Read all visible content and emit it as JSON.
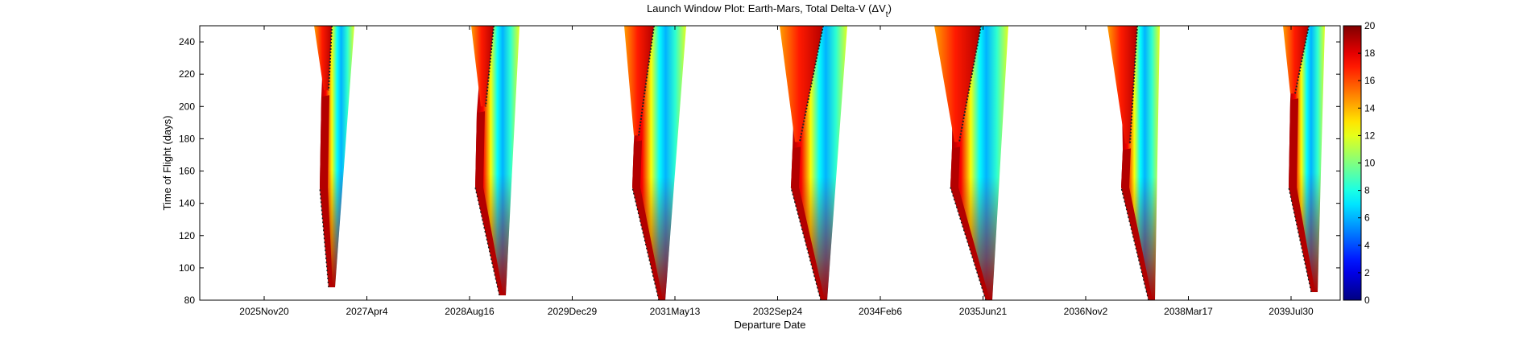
{
  "chart_data": {
    "type": "heatmap",
    "title": "Launch Window Plot: Earth-Mars, Total Delta-V (ΔV",
    "title_subscript": "t",
    "title_suffix": ")",
    "xlabel": "Departure Date",
    "ylabel": "Time of Flight (days)",
    "ylim": [
      80,
      250
    ],
    "yticks": [
      80,
      100,
      120,
      140,
      160,
      180,
      200,
      220,
      240
    ],
    "xticks": [
      "2025Nov20",
      "2027Apr4",
      "2028Aug16",
      "2029Dec29",
      "2031May13",
      "2032Sep24",
      "2034Feb6",
      "2035Jun21",
      "2036Nov2",
      "2038Mar17",
      "2039Jul30"
    ],
    "colorbar": {
      "range": [
        0,
        20
      ],
      "ticks": [
        0,
        2,
        4,
        6,
        8,
        10,
        12,
        14,
        16,
        18,
        20
      ],
      "colormap": "jet"
    },
    "grid": false,
    "launch_windows": [
      {
        "window": "2026-2027",
        "min_tof": 88,
        "min_tof_date_fraction": 0.77
      },
      {
        "window": "2028-2029",
        "min_tof": 83,
        "min_tof_date_fraction": 0.49
      },
      {
        "window": "2030-2031",
        "min_tof": 80,
        "min_tof_date_fraction": 0.42
      },
      {
        "window": "2033",
        "min_tof": 80,
        "min_tof_date_fraction": 0.35
      },
      {
        "window": "2035",
        "min_tof": 80,
        "min_tof_date_fraction": 0.31
      },
      {
        "window": "2037",
        "min_tof": 80,
        "min_tof_date_fraction": 0.53
      },
      {
        "window": "2039",
        "min_tof": 85,
        "min_tof_date_fraction": 0.15
      }
    ]
  }
}
